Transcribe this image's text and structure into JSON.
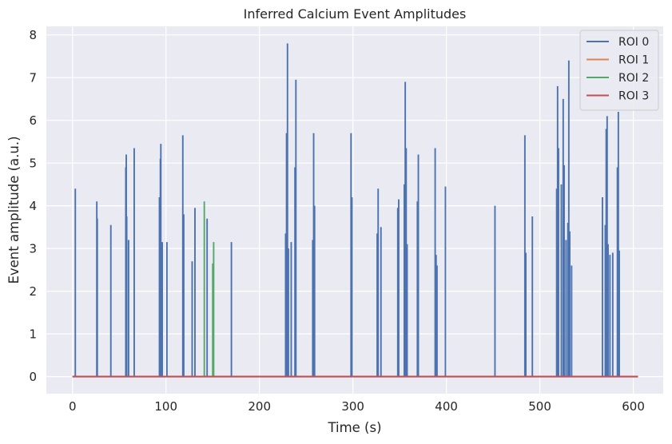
{
  "chart_data": {
    "type": "line",
    "title": "Inferred Calcium Event Amplitudes",
    "xlabel": "Time (s)",
    "ylabel": "Event amplitude (a.u.)",
    "xlim": [
      -28,
      632
    ],
    "ylim": [
      -0.4,
      8.2
    ],
    "xticks": [
      0,
      100,
      200,
      300,
      400,
      500,
      600
    ],
    "yticks": [
      0,
      1,
      2,
      3,
      4,
      5,
      6,
      7,
      8
    ],
    "x_range": [
      0,
      605
    ],
    "grid": true,
    "legend_position": "top-right",
    "series": [
      {
        "name": "ROI 0",
        "color": "#4c72b0",
        "events": [
          [
            3,
            4.4
          ],
          [
            26,
            4.1
          ],
          [
            26.5,
            3.7
          ],
          [
            41,
            3.55
          ],
          [
            57,
            4.9
          ],
          [
            57.5,
            5.2
          ],
          [
            58,
            3.75
          ],
          [
            60,
            3.2
          ],
          [
            66,
            5.35
          ],
          [
            93,
            4.2
          ],
          [
            94,
            5.1
          ],
          [
            94.5,
            5.45
          ],
          [
            96,
            3.15
          ],
          [
            101,
            3.15
          ],
          [
            118,
            5.65
          ],
          [
            119,
            3.8
          ],
          [
            128,
            2.7
          ],
          [
            131,
            3.95
          ],
          [
            144,
            3.7
          ],
          [
            170,
            3.15
          ],
          [
            228,
            3.35
          ],
          [
            229,
            5.7
          ],
          [
            230,
            7.8
          ],
          [
            231,
            3.0
          ],
          [
            234,
            3.15
          ],
          [
            238,
            4.9
          ],
          [
            239,
            6.95
          ],
          [
            257,
            3.2
          ],
          [
            258,
            5.7
          ],
          [
            259,
            4.0
          ],
          [
            298,
            5.7
          ],
          [
            299,
            4.2
          ],
          [
            326,
            3.35
          ],
          [
            327,
            4.4
          ],
          [
            330,
            3.5
          ],
          [
            348,
            3.95
          ],
          [
            349,
            4.15
          ],
          [
            355,
            4.5
          ],
          [
            356,
            6.9
          ],
          [
            357,
            5.35
          ],
          [
            358,
            3.1
          ],
          [
            369,
            4.1
          ],
          [
            370,
            5.2
          ],
          [
            388,
            5.35
          ],
          [
            389,
            2.85
          ],
          [
            390,
            2.6
          ],
          [
            399,
            4.45
          ],
          [
            452,
            4.0
          ],
          [
            484,
            5.65
          ],
          [
            485,
            2.9
          ],
          [
            492,
            3.75
          ],
          [
            518,
            4.4
          ],
          [
            519,
            6.8
          ],
          [
            520,
            5.35
          ],
          [
            523,
            4.5
          ],
          [
            525,
            6.5
          ],
          [
            526,
            4.95
          ],
          [
            528,
            3.2
          ],
          [
            530,
            3.6
          ],
          [
            531,
            7.4
          ],
          [
            532,
            3.4
          ],
          [
            534,
            2.6
          ],
          [
            567,
            4.2
          ],
          [
            570,
            3.55
          ],
          [
            571,
            5.8
          ],
          [
            572,
            6.1
          ],
          [
            573,
            3.1
          ],
          [
            575,
            2.85
          ],
          [
            578,
            2.9
          ],
          [
            583,
            4.9
          ],
          [
            584,
            6.2
          ],
          [
            585,
            2.95
          ]
        ]
      },
      {
        "name": "ROI 1",
        "color": "#dd8452",
        "events": []
      },
      {
        "name": "ROI 2",
        "color": "#55a868",
        "events": [
          [
            141,
            4.1
          ],
          [
            150,
            2.65
          ],
          [
            151,
            3.15
          ]
        ]
      },
      {
        "name": "ROI 3",
        "color": "#c44e52",
        "events": []
      }
    ]
  }
}
